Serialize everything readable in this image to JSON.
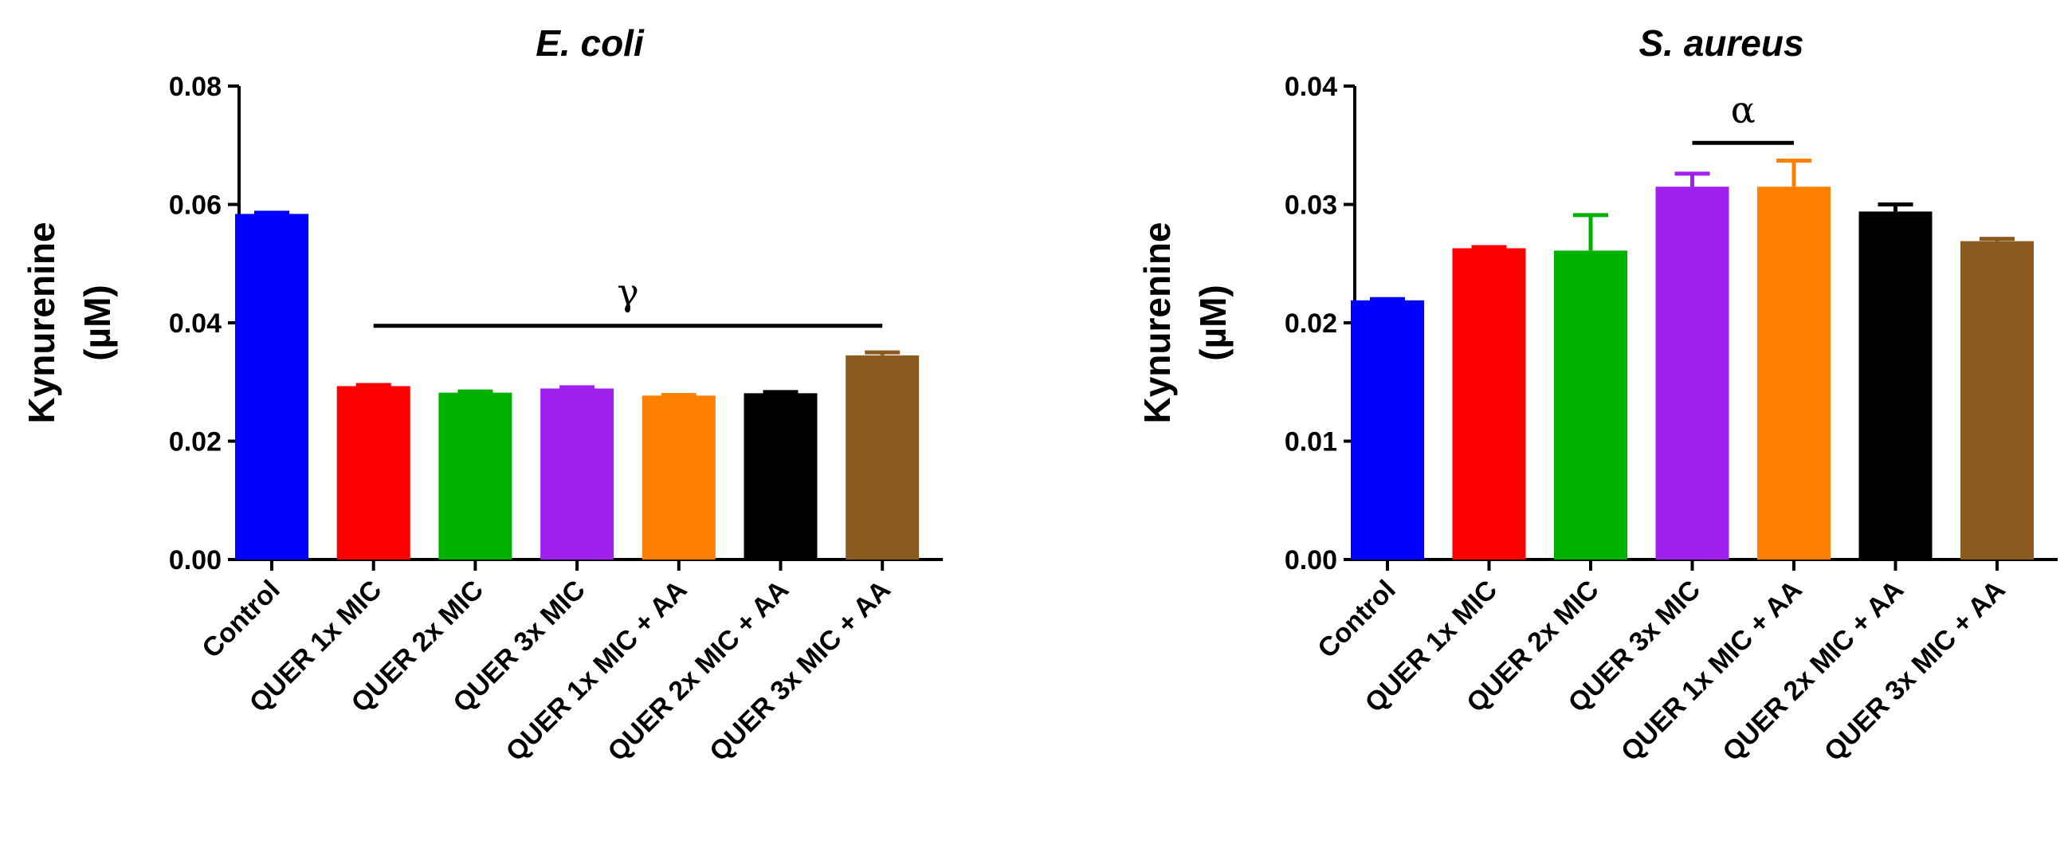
{
  "chart_data": [
    {
      "type": "bar",
      "title": "E. coli",
      "ylabel": "Kynurenine",
      "yunit": "(µM)",
      "ylim": [
        0,
        0.08
      ],
      "yticks": [
        "0.00",
        "0.02",
        "0.04",
        "0.06",
        "0.08"
      ],
      "categories": [
        "Control",
        "QUER 1x MIC",
        "QUER 2x MIC",
        "QUER 3x MIC",
        "QUER 1x MIC + AA",
        "QUER 2x MIC + AA",
        "QUER 3x MIC + AA"
      ],
      "values": [
        0.0584,
        0.0293,
        0.0282,
        0.0289,
        0.0277,
        0.0281,
        0.0345
      ],
      "errors": [
        0.0002,
        0.0002,
        0.0002,
        0.0002,
        0.0001,
        0.0002,
        0.0005
      ],
      "colors": [
        "#0000FF",
        "#FF0000",
        "#00B200",
        "#A020F0",
        "#FF8000",
        "#000000",
        "#8B5A1E"
      ],
      "annotation": {
        "symbol": "γ",
        "from_index": 1,
        "to_index": 6,
        "y": 0.0395
      }
    },
    {
      "type": "bar",
      "title": "S. aureus",
      "ylabel": "Kynurenine",
      "yunit": "(µM)",
      "ylim": [
        0,
        0.04
      ],
      "yticks": [
        "0.00",
        "0.01",
        "0.02",
        "0.03",
        "0.04"
      ],
      "categories": [
        "Control",
        "QUER 1x MIC",
        "QUER 2x MIC",
        "QUER 3x MIC",
        "QUER 1x MIC + AA",
        "QUER 2x MIC + AA",
        "QUER 3x MIC + AA"
      ],
      "values": [
        0.0219,
        0.0263,
        0.0261,
        0.0315,
        0.0315,
        0.0294,
        0.0269
      ],
      "errors": [
        0.0001,
        0.0001,
        0.003,
        0.0011,
        0.0022,
        0.0006,
        0.0002
      ],
      "colors": [
        "#0000FF",
        "#FF0000",
        "#00B200",
        "#A020F0",
        "#FF8000",
        "#000000",
        "#8B5A1E"
      ],
      "annotation": {
        "symbol": "α",
        "from_index": 3,
        "to_index": 4,
        "y": 0.0352
      }
    }
  ]
}
